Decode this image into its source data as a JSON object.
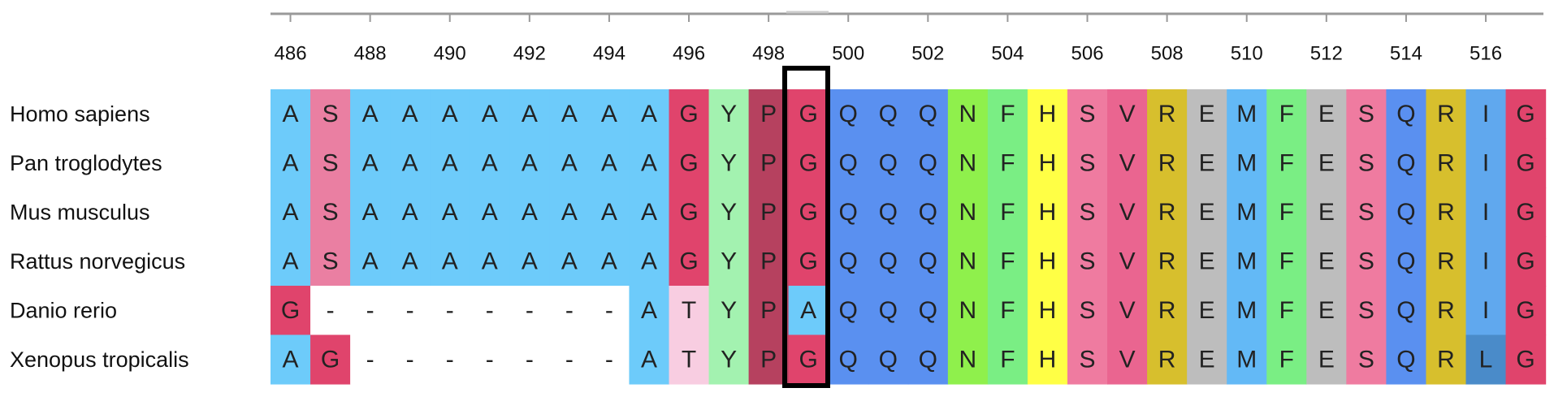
{
  "ruler": {
    "labels": [
      486,
      488,
      490,
      492,
      494,
      496,
      498,
      500,
      502,
      504,
      506,
      508,
      510,
      512,
      514,
      516
    ]
  },
  "sequences": [
    {
      "name": "Homo sapiens",
      "residues": [
        "A",
        "S",
        "A",
        "A",
        "A",
        "A",
        "A",
        "A",
        "A",
        "A",
        "G",
        "Y",
        "P",
        "G",
        "Q",
        "Q",
        "Q",
        "N",
        "F",
        "H",
        "S",
        "V",
        "R",
        "E",
        "M",
        "F",
        "E",
        "S",
        "Q",
        "R",
        "I",
        "G"
      ]
    },
    {
      "name": "Pan troglodytes",
      "residues": [
        "A",
        "S",
        "A",
        "A",
        "A",
        "A",
        "A",
        "A",
        "A",
        "A",
        "G",
        "Y",
        "P",
        "G",
        "Q",
        "Q",
        "Q",
        "N",
        "F",
        "H",
        "S",
        "V",
        "R",
        "E",
        "M",
        "F",
        "E",
        "S",
        "Q",
        "R",
        "I",
        "G"
      ]
    },
    {
      "name": "Mus musculus",
      "residues": [
        "A",
        "S",
        "A",
        "A",
        "A",
        "A",
        "A",
        "A",
        "A",
        "A",
        "G",
        "Y",
        "P",
        "G",
        "Q",
        "Q",
        "Q",
        "N",
        "F",
        "H",
        "S",
        "V",
        "R",
        "E",
        "M",
        "F",
        "E",
        "S",
        "Q",
        "R",
        "I",
        "G"
      ]
    },
    {
      "name": "Rattus norvegicus",
      "residues": [
        "A",
        "S",
        "A",
        "A",
        "A",
        "A",
        "A",
        "A",
        "A",
        "A",
        "G",
        "Y",
        "P",
        "G",
        "Q",
        "Q",
        "Q",
        "N",
        "F",
        "H",
        "S",
        "V",
        "R",
        "E",
        "M",
        "F",
        "E",
        "S",
        "Q",
        "R",
        "I",
        "G"
      ]
    },
    {
      "name": "Danio rerio",
      "residues": [
        "G",
        "-",
        "-",
        "-",
        "-",
        "-",
        "-",
        "-",
        "-",
        "A",
        "T",
        "Y",
        "P",
        "A",
        "Q",
        "Q",
        "Q",
        "N",
        "F",
        "H",
        "S",
        "V",
        "R",
        "E",
        "M",
        "F",
        "E",
        "S",
        "Q",
        "R",
        "I",
        "G"
      ]
    },
    {
      "name": "Xenopus tropicalis",
      "residues": [
        "A",
        "G",
        "-",
        "-",
        "-",
        "-",
        "-",
        "-",
        "-",
        "A",
        "T",
        "Y",
        "P",
        "G",
        "Q",
        "Q",
        "Q",
        "N",
        "F",
        "H",
        "S",
        "V",
        "R",
        "E",
        "M",
        "F",
        "E",
        "S",
        "Q",
        "R",
        "L",
        "G"
      ]
    }
  ]
}
